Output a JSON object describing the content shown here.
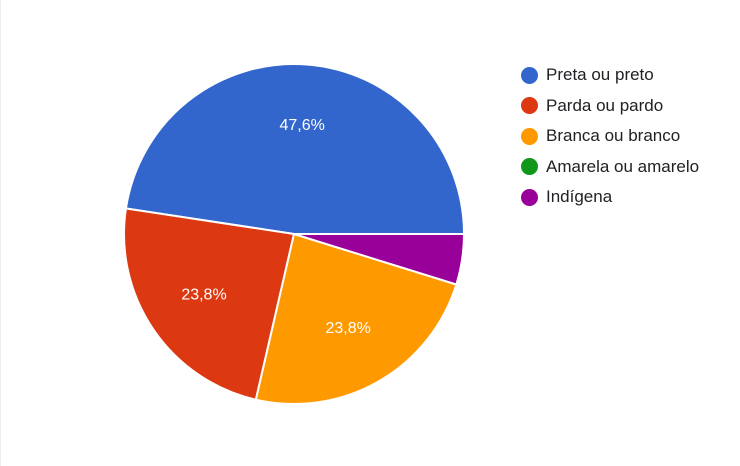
{
  "chart_data": {
    "type": "pie",
    "title": "",
    "categories": [
      "Preta ou preto",
      "Parda ou pardo",
      "Branca ou branco",
      "Amarela ou amarelo",
      "Indígena"
    ],
    "values": [
      47.6,
      23.8,
      23.8,
      0,
      4.8
    ],
    "data_labels": [
      "47,6%",
      "23,8%",
      "23,8%",
      "",
      ""
    ],
    "colors": [
      "#3366cc",
      "#dc3912",
      "#ff9900",
      "#109618",
      "#990099"
    ],
    "legend_position": "right",
    "start_direction": "3 o'clock, counterclockwise"
  }
}
